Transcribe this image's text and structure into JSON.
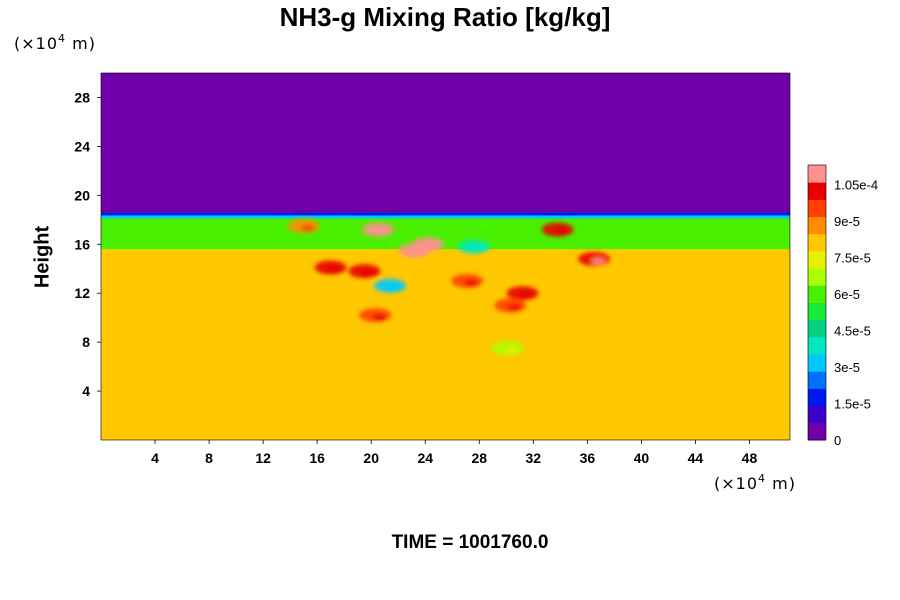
{
  "chart_data": {
    "type": "heatmap",
    "title": "NH3-g Mixing Ratio [kg/kg]",
    "ylabel": "Height",
    "x_unit_base": "(×10",
    "x_unit_exp": "4",
    "x_unit_tail": " m)",
    "y_unit_base": "(×10",
    "y_unit_exp": "4",
    "y_unit_tail": " m)",
    "x_ticks": [
      "4",
      "8",
      "12",
      "16",
      "20",
      "24",
      "28",
      "32",
      "36",
      "40",
      "44",
      "48"
    ],
    "x_tick_values": [
      4,
      8,
      12,
      16,
      20,
      24,
      28,
      32,
      36,
      40,
      44,
      48
    ],
    "y_ticks": [
      "4",
      "8",
      "12",
      "16",
      "20",
      "24",
      "28"
    ],
    "y_tick_values": [
      4,
      8,
      12,
      16,
      20,
      24,
      28
    ],
    "xlim": [
      0,
      51
    ],
    "ylim": [
      0,
      30
    ],
    "colorbar": {
      "ticks": [
        "0",
        "1.5e-5",
        "3e-5",
        "4.5e-5",
        "6e-5",
        "7.5e-5",
        "9e-5",
        "1.05e-4"
      ],
      "tick_values": [
        0,
        1.5e-05,
        3e-05,
        4.5e-05,
        6e-05,
        7.5e-05,
        9e-05,
        0.000105
      ],
      "range": [
        0,
        0.000113
      ],
      "colors": [
        "#7000a8",
        "#3c00c8",
        "#0018f0",
        "#0070ff",
        "#00c8ff",
        "#00e8c0",
        "#00d080",
        "#18e838",
        "#48f000",
        "#a8ff00",
        "#e8f000",
        "#ffc800",
        "#ff8c00",
        "#ff4000",
        "#e80000",
        "#ff9090"
      ]
    },
    "regions": {
      "upper_value": 0,
      "transition_value": 6e-05,
      "lower_value": 7.8e-05,
      "transition_height": [
        15.6,
        18.6
      ]
    },
    "features": [
      {
        "x": 20.5,
        "y": 17.2,
        "value": 0.00011
      },
      {
        "x": 24.2,
        "y": 16.0,
        "value": 0.000112
      },
      {
        "x": 23.2,
        "y": 15.5,
        "value": 0.000112
      },
      {
        "x": 19.5,
        "y": 13.8,
        "value": 0.0001
      },
      {
        "x": 17.0,
        "y": 14.1,
        "value": 0.0001
      },
      {
        "x": 20.3,
        "y": 10.2,
        "value": 9.8e-05
      },
      {
        "x": 31.2,
        "y": 12.0,
        "value": 0.0001
      },
      {
        "x": 30.3,
        "y": 11.0,
        "value": 9.8e-05
      },
      {
        "x": 36.5,
        "y": 14.8,
        "value": 0.000105
      },
      {
        "x": 33.8,
        "y": 17.2,
        "value": 0.0001
      },
      {
        "x": 27.1,
        "y": 13.0,
        "value": 9.5e-05
      },
      {
        "x": 15.0,
        "y": 17.5,
        "value": 9e-05
      },
      {
        "x": 21.4,
        "y": 12.6,
        "value": 3e-05
      },
      {
        "x": 27.6,
        "y": 15.8,
        "value": 4e-05
      },
      {
        "x": 30.1,
        "y": 7.5,
        "value": 7e-05
      }
    ],
    "time_label": "TIME = 1001760.0"
  }
}
